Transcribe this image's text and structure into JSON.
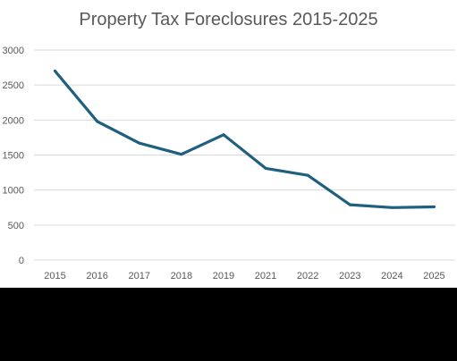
{
  "chart_data": {
    "type": "line",
    "title": "Property Tax Foreclosures 2015-2025",
    "xlabel": "",
    "ylabel": "",
    "categories": [
      "2015",
      "2016",
      "2017",
      "2018",
      "2019",
      "2021",
      "2022",
      "2023",
      "2024",
      "2025"
    ],
    "series": [
      {
        "values": [
          2700,
          1980,
          1670,
          1510,
          1790,
          1310,
          1210,
          790,
          750,
          760
        ]
      }
    ],
    "ylim": [
      0,
      3000
    ],
    "yticks": [
      0,
      500,
      1000,
      1500,
      2000,
      2500,
      3000
    ],
    "grid": true,
    "legend": "none",
    "colors": {
      "line": "#1f5f7f",
      "grid": "#d9d9d9",
      "text": "#595959",
      "background": "#ffffff"
    }
  }
}
